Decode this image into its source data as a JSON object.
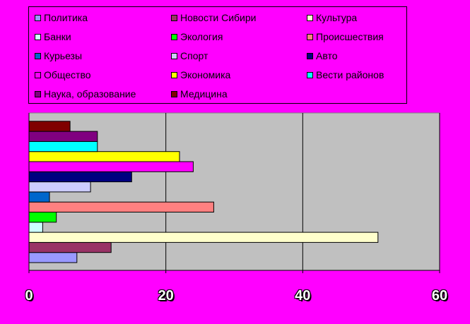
{
  "chart_data": {
    "type": "bar",
    "orientation": "horizontal",
    "xlim": [
      0,
      60
    ],
    "x_ticks": [
      "0",
      "20",
      "40",
      "60"
    ],
    "grid": "vertical",
    "legend_position": "top",
    "series": [
      {
        "name": "Политика",
        "value": 7,
        "color": "#9999ff"
      },
      {
        "name": "Новости Сибири",
        "value": 12,
        "color": "#993366"
      },
      {
        "name": "Культура",
        "value": 51,
        "color": "#ffffcc"
      },
      {
        "name": "Банки",
        "value": 2,
        "color": "#ccffff"
      },
      {
        "name": "Экология",
        "value": 4,
        "color": "#00ff00"
      },
      {
        "name": "Происшествия",
        "value": 27,
        "color": "#ff8080"
      },
      {
        "name": "Курьезы",
        "value": 3,
        "color": "#0066cc"
      },
      {
        "name": "Спорт",
        "value": 9,
        "color": "#ccccff"
      },
      {
        "name": "Авто",
        "value": 15,
        "color": "#000080"
      },
      {
        "name": "Общество",
        "value": 24,
        "color": "#ff00ff"
      },
      {
        "name": "Экономика",
        "value": 22,
        "color": "#ffff00"
      },
      {
        "name": "Вести районов",
        "value": 10,
        "color": "#00ffff"
      },
      {
        "name": "Наука, образование",
        "value": 10,
        "color": "#800080"
      },
      {
        "name": "Медицина",
        "value": 6,
        "color": "#800000"
      }
    ]
  }
}
